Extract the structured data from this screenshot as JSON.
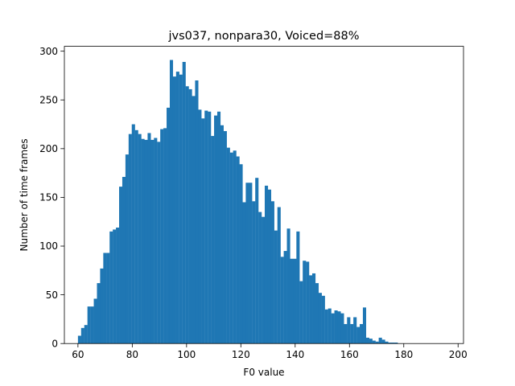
{
  "chart_data": {
    "type": "bar",
    "title": "jvs037, nonpara30, Voiced=88%",
    "xlabel": "F0 value",
    "ylabel": "Number of time frames",
    "xlim": [
      55,
      202
    ],
    "ylim": [
      0,
      305
    ],
    "x_ticks": [
      60,
      80,
      100,
      120,
      140,
      160,
      180,
      200
    ],
    "y_ticks": [
      0,
      50,
      100,
      150,
      200,
      250,
      300
    ],
    "bin_start": 60,
    "bin_width": 1.166,
    "grid": false,
    "bar_color": "#1f77b4",
    "values": [
      8,
      16,
      19,
      38,
      38,
      46,
      62,
      77,
      93,
      93,
      115,
      117,
      119,
      161,
      171,
      194,
      215,
      225,
      219,
      215,
      210,
      209,
      216,
      209,
      211,
      207,
      220,
      221,
      242,
      291,
      274,
      279,
      276,
      289,
      264,
      261,
      254,
      270,
      240,
      231,
      239,
      238,
      213,
      234,
      238,
      224,
      218,
      201,
      196,
      198,
      192,
      184,
      145,
      165,
      165,
      146,
      170,
      135,
      130,
      162,
      158,
      146,
      116,
      140,
      89,
      95,
      118,
      87,
      87,
      115,
      64,
      85,
      84,
      70,
      72,
      62,
      52,
      49,
      35,
      36,
      31,
      34,
      33,
      31,
      20,
      27,
      20,
      27,
      17,
      20,
      37,
      6,
      5,
      3,
      2,
      6,
      4,
      2,
      1,
      1,
      1
    ]
  }
}
